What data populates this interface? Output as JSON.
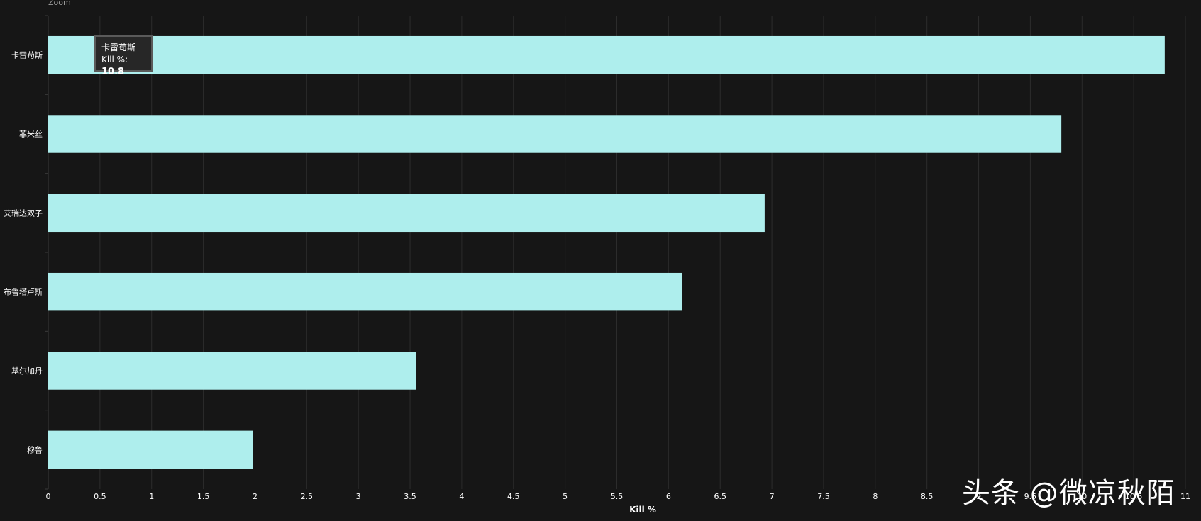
{
  "zoom_label": "Zoom",
  "tooltip": {
    "category": "卡雷苟斯",
    "label": "Kill %:",
    "value": "10.8"
  },
  "watermark": "头条 @微凉秋陌",
  "colors": {
    "background": "#161616",
    "bar": "#aeeeed",
    "grid": "#2c2c2c",
    "text": "#ffffff"
  },
  "chart_data": {
    "type": "bar",
    "orientation": "horizontal",
    "categories": [
      "卡雷苟斯",
      "菲米丝",
      "艾瑞达双子",
      "布鲁塔卢斯",
      "基尔加丹",
      "穆鲁"
    ],
    "values": [
      10.8,
      9.8,
      6.93,
      6.13,
      3.56,
      1.98
    ],
    "xlabel": "Kill %",
    "xlim": [
      0,
      11
    ],
    "xticks": [
      "0",
      "0.5",
      "1",
      "1.5",
      "2",
      "2.5",
      "3",
      "3.5",
      "4",
      "4.5",
      "5",
      "5.5",
      "6",
      "6.5",
      "7",
      "7.5",
      "8",
      "8.5",
      "9",
      "9.5",
      "10",
      "10.5",
      "11"
    ],
    "grid": true
  }
}
